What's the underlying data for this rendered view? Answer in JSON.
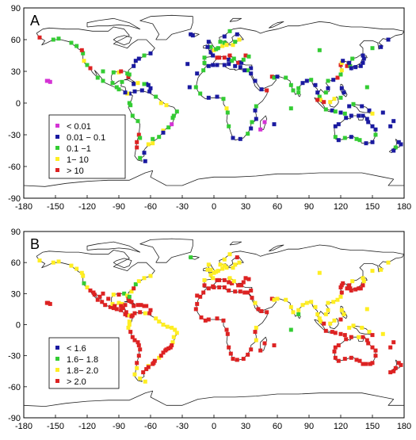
{
  "figure": {
    "panels": [
      {
        "id": "A",
        "label": "A",
        "legend_items": [
          {
            "label": "< 0.01",
            "color": "#d433d4"
          },
          {
            "label": "0.01 − 0.1",
            "color": "#1a1aa0"
          },
          {
            "label": "0.1 −1",
            "color": "#33cc33"
          },
          {
            "label": "1−  10",
            "color": "#ffee22"
          },
          {
            "label": "> 10",
            "color": "#dd2222"
          }
        ]
      },
      {
        "id": "B",
        "label": "B",
        "legend_items": [
          {
            "label": "< 1.6",
            "color": "#1a1aa0"
          },
          {
            "label": "1.6−  1.8",
            "color": "#33cc33"
          },
          {
            "label": "1.8− 2.0",
            "color": "#ffee22"
          },
          {
            "label": "> 2.0",
            "color": "#dd2222"
          }
        ]
      }
    ],
    "x_ticks": [
      "-180",
      "-150",
      "-120",
      "-90",
      "-60",
      "-30",
      "0",
      "30",
      "60",
      "90",
      "120",
      "150",
      "180"
    ],
    "y_ticks": [
      "90",
      "60",
      "30",
      "0",
      "-30",
      "-60",
      "-90"
    ],
    "lon_range": [
      -180,
      180
    ],
    "lat_range": [
      -90,
      90
    ]
  }
}
